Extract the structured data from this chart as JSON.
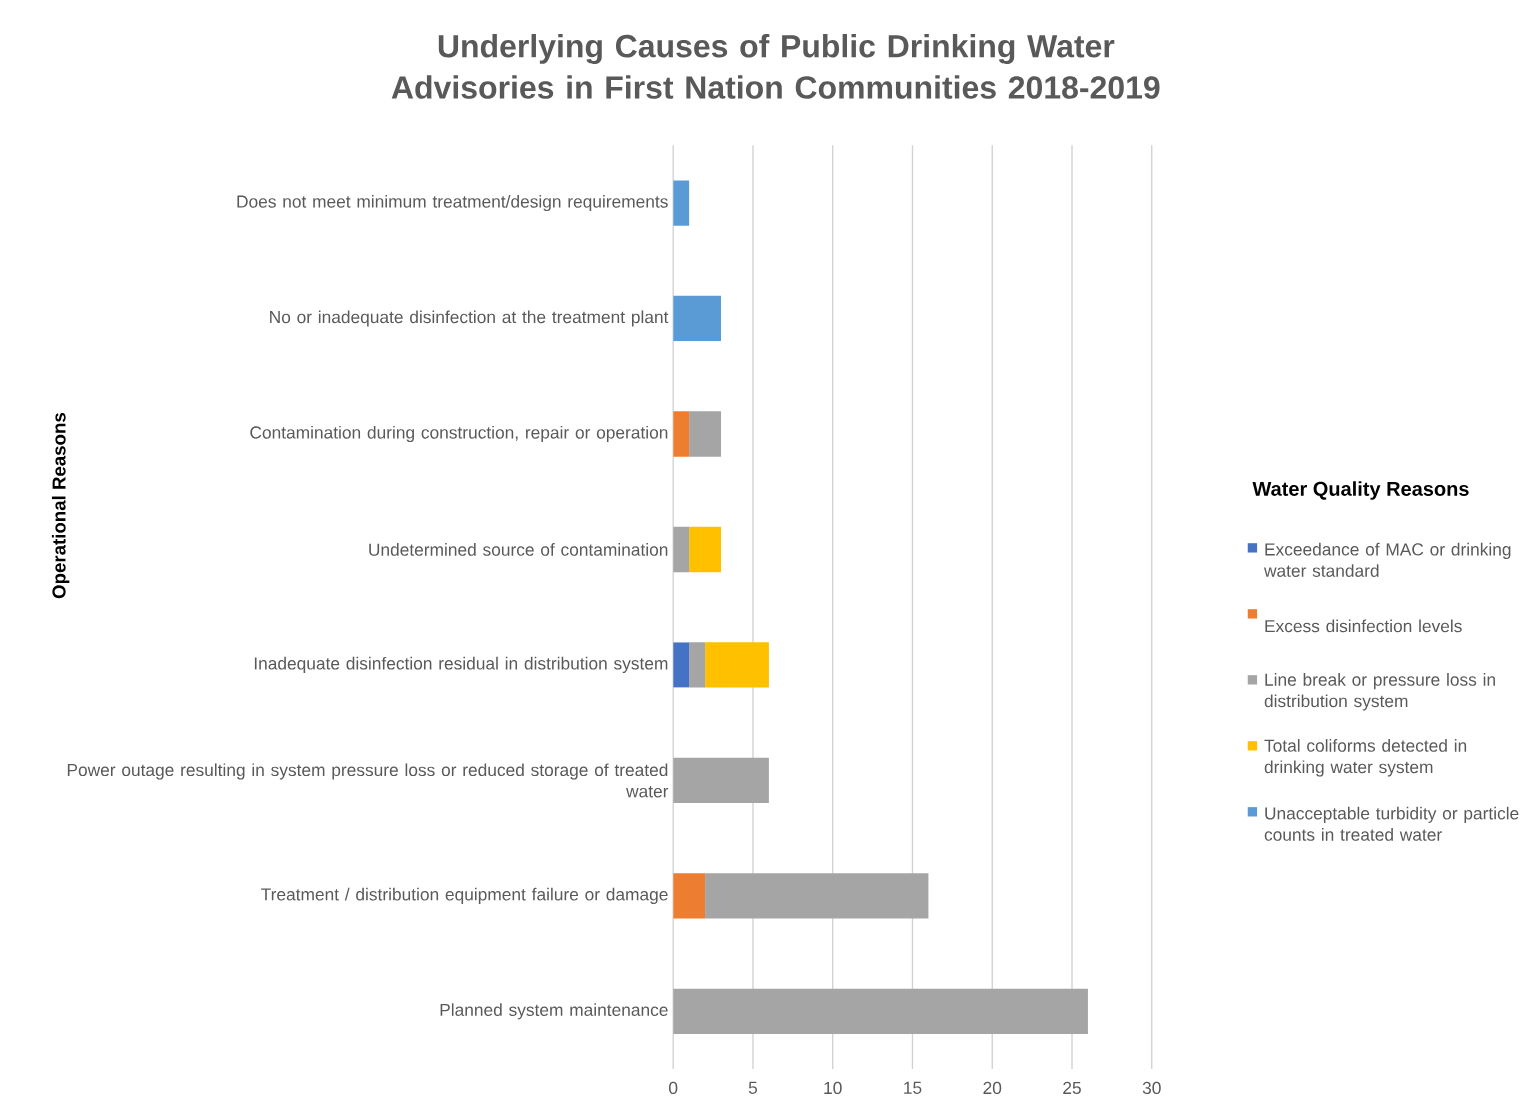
{
  "chart_data": {
    "type": "bar",
    "orientation": "horizontal",
    "stacked": true,
    "title": "Underlying Causes of Public Drinking Water Advisories in First Nation Communities 2018-2019",
    "ylabel": "Operational Reasons",
    "legend_title": "Water Quality Reasons",
    "categories": [
      "Does not meet minimum treatment/design requirements",
      "No or inadequate disinfection at the treatment plant",
      "Contamination during construction, repair or operation",
      "Undetermined source of contamination",
      "Inadequate disinfection residual in distribution system",
      "Power outage resulting in system pressure loss or reduced storage of treated water",
      "Treatment / distribution equipment failure or damage",
      "Planned system maintenance"
    ],
    "series": [
      {
        "name": "Exceedance of MAC or drinking water standard",
        "color": "#4472c4",
        "values": [
          0,
          0,
          0,
          0,
          1,
          0,
          0,
          0
        ]
      },
      {
        "name": "Excess disinfection levels",
        "color": "#ed7d31",
        "values": [
          0,
          0,
          1,
          0,
          0,
          0,
          2,
          0
        ]
      },
      {
        "name": "Line break or pressure loss in distribution system",
        "color": "#a5a5a5",
        "values": [
          0,
          0,
          2,
          1,
          1,
          6,
          14,
          26
        ]
      },
      {
        "name": "Total coliforms detected in drinking water system",
        "color": "#ffc000",
        "values": [
          0,
          0,
          0,
          2,
          4,
          0,
          0,
          0
        ]
      },
      {
        "name": "Unacceptable turbidity or particle counts in treated water",
        "color": "#5b9bd5",
        "values": [
          1,
          3,
          0,
          0,
          0,
          0,
          0,
          0
        ]
      }
    ],
    "xlim": [
      0,
      30
    ],
    "xticks": [
      0,
      5,
      10,
      15,
      20,
      25,
      30
    ],
    "grid": "x",
    "legend": "right"
  }
}
